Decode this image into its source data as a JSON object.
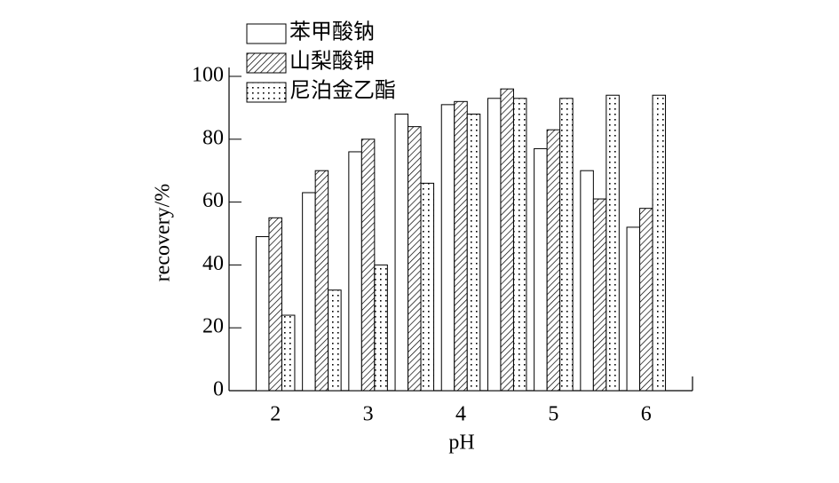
{
  "chart_data": {
    "type": "bar",
    "x_label": "pH",
    "y_label": "recovery/%",
    "categories": [
      "2",
      null,
      "3",
      null,
      "4",
      null,
      "5",
      null,
      "6"
    ],
    "series": [
      {
        "name": "苯甲酸钠",
        "color": "#000000",
        "pattern": "none",
        "values": [
          49,
          63,
          76,
          88,
          91,
          93,
          77,
          70,
          52
        ]
      },
      {
        "name": "山梨酸钾",
        "color": "#000000",
        "pattern": "hatch",
        "values": [
          55,
          70,
          80,
          84,
          92,
          96,
          83,
          61,
          58
        ]
      },
      {
        "name": "尼泊金乙酯",
        "color": "#000000",
        "pattern": "dots",
        "values": [
          24,
          32,
          40,
          66,
          88,
          93,
          93,
          94,
          94
        ]
      }
    ],
    "ylim": [
      0,
      100
    ],
    "yticks": [
      0,
      20,
      40,
      60,
      80,
      100
    ],
    "legend": "upper-left"
  }
}
